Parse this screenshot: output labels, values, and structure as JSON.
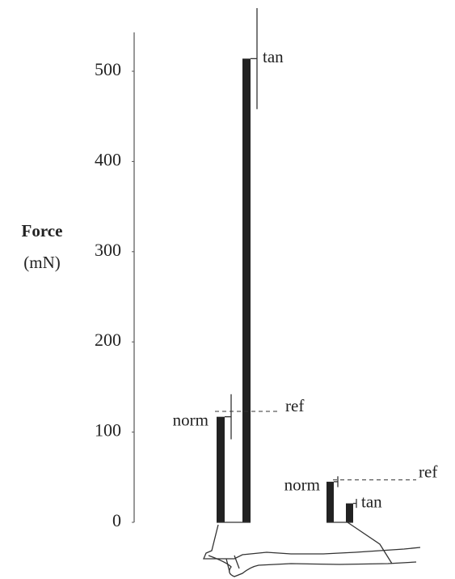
{
  "chart_data": {
    "type": "bar",
    "y_label": [
      "Force",
      "(mN)"
    ],
    "ylim": [
      0,
      545
    ],
    "yticks": [
      0,
      100,
      200,
      300,
      400,
      500
    ],
    "color": "#222222",
    "groups": [
      {
        "bars": [
          {
            "name": "norm",
            "value": 117,
            "error": 25
          },
          {
            "name": "tan",
            "value": 514,
            "error": 56
          }
        ],
        "ref_label": "ref",
        "ref_value": 123
      },
      {
        "bars": [
          {
            "name": "norm",
            "value": 45,
            "error": 6
          },
          {
            "name": "tan",
            "value": 21,
            "error": 5
          }
        ],
        "ref_label": "ref",
        "ref_value": 47
      }
    ]
  }
}
